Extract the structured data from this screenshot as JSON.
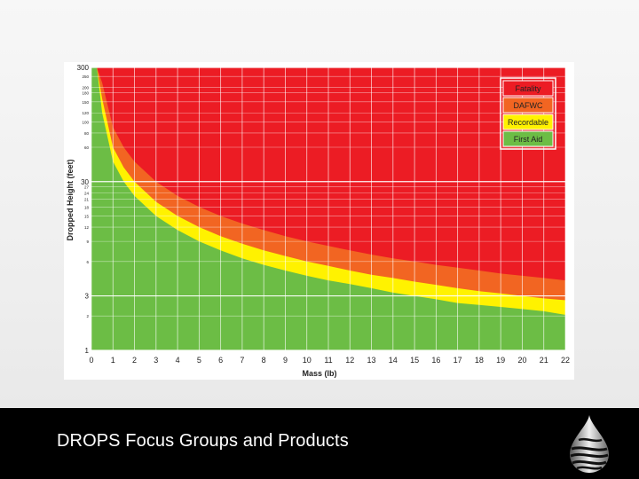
{
  "footer": {
    "title": "DROPS Focus Groups and Products",
    "logo_icon": "drop-logo-icon"
  },
  "colors": {
    "fatality": "#ec1c24",
    "dafwc": "#f26522",
    "recordable": "#fff200",
    "first_aid": "#6cbd45",
    "legend_border": "#ffffff"
  },
  "chart_data": {
    "type": "area",
    "xlabel": "Mass (lb)",
    "ylabel": "Dropped Height (feet)",
    "x_ticks": [
      "0",
      "1",
      "2",
      "3",
      "4",
      "5",
      "6",
      "7",
      "8",
      "9",
      "10",
      "11",
      "12",
      "13",
      "14",
      "15",
      "16",
      "17",
      "18",
      "19",
      "20",
      "21",
      "22"
    ],
    "xlim": [
      0,
      22
    ],
    "ylim": [
      1,
      300
    ],
    "y_scale": "log",
    "y_ticks_major": [
      {
        "value": 300,
        "label": "300"
      },
      {
        "value": 30,
        "label": "30"
      },
      {
        "value": 3,
        "label": "3"
      },
      {
        "value": 1,
        "label": "1"
      }
    ],
    "y_ticks_minor": [
      {
        "value": 250,
        "label": "250"
      },
      {
        "value": 200,
        "label": "200"
      },
      {
        "value": 180,
        "label": "180"
      },
      {
        "value": 150,
        "label": "150"
      },
      {
        "value": 120,
        "label": "120"
      },
      {
        "value": 100,
        "label": "100"
      },
      {
        "value": 80,
        "label": "80"
      },
      {
        "value": 60,
        "label": "60"
      },
      {
        "value": 27,
        "label": "27"
      },
      {
        "value": 24,
        "label": "24"
      },
      {
        "value": 21,
        "label": "21"
      },
      {
        "value": 18,
        "label": "18"
      },
      {
        "value": 15,
        "label": "15"
      },
      {
        "value": 12,
        "label": "12"
      },
      {
        "value": 9,
        "label": "9"
      },
      {
        "value": 6,
        "label": "6"
      },
      {
        "value": 2,
        "label": "2"
      }
    ],
    "grid": true,
    "legend_position": "top-right",
    "x_samples": [
      0.25,
      0.5,
      1,
      1.5,
      2,
      3,
      4,
      5,
      6,
      7,
      8,
      9,
      10,
      11,
      12,
      13,
      14,
      15,
      16,
      17,
      18,
      19,
      20,
      21,
      22
    ],
    "boundaries": [
      {
        "name": "First Aid",
        "values": [
          300,
          120,
          45,
          30,
          22.5,
          15,
          11.3,
          9,
          7.5,
          6.4,
          5.6,
          5,
          4.5,
          4.1,
          3.8,
          3.5,
          3.2,
          3,
          2.8,
          2.6,
          2.5,
          2.4,
          2.3,
          2.2,
          2.05
        ]
      },
      {
        "name": "Recordable",
        "values": [
          300,
          160,
          60,
          40,
          30,
          20,
          15,
          12,
          10,
          8.6,
          7.5,
          6.7,
          6,
          5.5,
          5,
          4.6,
          4.3,
          4,
          3.75,
          3.5,
          3.3,
          3.15,
          3,
          2.85,
          2.75
        ]
      },
      {
        "name": "DAFWC",
        "values": [
          300,
          220,
          90,
          60,
          45,
          30,
          22.5,
          18,
          15,
          12.9,
          11.3,
          10,
          9,
          8.2,
          7.5,
          6.9,
          6.4,
          6,
          5.6,
          5.3,
          5,
          4.7,
          4.5,
          4.3,
          4.1
        ]
      }
    ],
    "legend": [
      {
        "label": "Fatality",
        "color": "#ec1c24"
      },
      {
        "label": "DAFWC",
        "color": "#f26522"
      },
      {
        "label": "Recordable",
        "color": "#fff200"
      },
      {
        "label": "First Aid",
        "color": "#6cbd45"
      }
    ]
  }
}
